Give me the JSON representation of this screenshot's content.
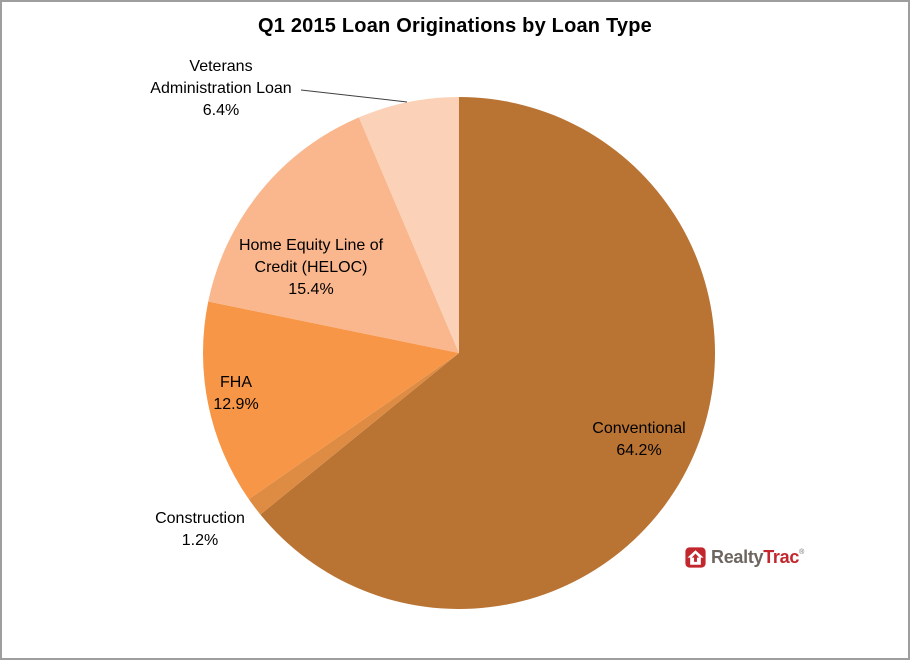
{
  "title": "Q1 2015 Loan Originations by Loan Type",
  "chart_data": {
    "type": "pie",
    "title": "Q1 2015 Loan Originations by Loan Type",
    "direction": "clockwise",
    "start_angle_deg": 0,
    "legend": "none",
    "slices": [
      {
        "label": "Conventional",
        "value_pct": 64.2,
        "color": "#B97333"
      },
      {
        "label": "Construction",
        "value_pct": 1.2,
        "color": "#DE8C43"
      },
      {
        "label": "FHA",
        "value_pct": 12.9,
        "color": "#F79646"
      },
      {
        "label": "Home Equity Line of Credit (HELOC)",
        "value_pct": 15.4,
        "color": "#FAB68C"
      },
      {
        "label": "Veterans Administration Loan",
        "value_pct": 6.4,
        "color": "#FBD1B8"
      }
    ]
  },
  "labels": {
    "va": {
      "line1": "Veterans",
      "line2": "Administration Loan",
      "pct": "6.4%"
    },
    "heloc": {
      "line1": "Home Equity Line of",
      "line2": "Credit (HELOC)",
      "pct": "15.4%"
    },
    "fha": {
      "name": "FHA",
      "pct": "12.9%"
    },
    "construction": {
      "name": "Construction",
      "pct": "1.2%"
    },
    "conventional": {
      "name": "Conventional",
      "pct": "64.2%"
    }
  },
  "logo": {
    "realty": "Realty",
    "trac": "Trac",
    "registered": "®"
  },
  "theme": {
    "logo_red": "#C1272D",
    "logo_gray": "#6D6660",
    "text_color": "#000000",
    "border_color": "#9E9E9E"
  }
}
